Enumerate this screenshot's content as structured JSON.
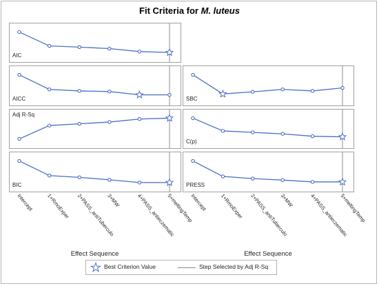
{
  "title": {
    "prefix": "Fit Criteria for ",
    "species": "M. luteus"
  },
  "colors": {
    "line": "#4a6fc4",
    "marker": "#4a6fc4",
    "frame": "#a0a0a0",
    "selected_line": "#8c8c8c"
  },
  "legend": {
    "best_label": "Best Criterion Value",
    "step_label": "Step Selected by Adj R-Sq"
  },
  "chart_data": [
    {
      "type": "line",
      "name": "AIC",
      "label": "AIC",
      "label_pos": "bottom-left",
      "x": [
        "Intercept",
        "1+RmoExper",
        "2+PASS_antiTuberculo",
        "3+MW",
        "4+PASS_antieczematic",
        "5+meltingTemp"
      ],
      "values": [
        0.85,
        0.38,
        0.34,
        0.29,
        0.19,
        0.16
      ],
      "best_index": 5,
      "selected_index": 5,
      "ylim": [
        0,
        1
      ]
    },
    {
      "type": "line",
      "name": "AICC",
      "label": "AICC",
      "label_pos": "bottom-left",
      "x": [
        "Intercept",
        "1+RmoExper",
        "2+PASS_antiTuberculo",
        "3+MW",
        "4+PASS_antieczematic",
        "5+meltingTemp"
      ],
      "values": [
        0.85,
        0.37,
        0.32,
        0.3,
        0.19,
        0.19
      ],
      "best_index": 4,
      "selected_index": 5,
      "ylim": [
        0,
        1
      ]
    },
    {
      "type": "line",
      "name": "SBC",
      "label": "SBC",
      "label_pos": "bottom-left",
      "x": [
        "Intercept",
        "1+RmoExper",
        "2+PASS_antiTuberculo",
        "3+MW",
        "4+PASS_antieczematic",
        "5+meltingTemp"
      ],
      "values": [
        0.85,
        0.22,
        0.29,
        0.37,
        0.32,
        0.42
      ],
      "best_index": 1,
      "selected_index": 5,
      "ylim": [
        0,
        1
      ]
    },
    {
      "type": "line",
      "name": "Adj R-Sq",
      "label": "Adj R-Sq",
      "label_pos": "top-left",
      "x": [
        "Intercept",
        "1+RmoExper",
        "2+PASS_antiTuberculo",
        "3+MW",
        "4+PASS_antieczematic",
        "5+meltingTemp"
      ],
      "values": [
        0.15,
        0.6,
        0.66,
        0.72,
        0.82,
        0.85
      ],
      "best_index": 5,
      "selected_index": 5,
      "ylim": [
        0,
        1
      ]
    },
    {
      "type": "line",
      "name": "C(p)",
      "label": "C(p)",
      "label_pos": "bottom-left",
      "x": [
        "Intercept",
        "1+RmoExper",
        "2+PASS_antiTuberculo",
        "3+MW",
        "4+PASS_antieczematic",
        "5+meltingTemp"
      ],
      "values": [
        0.85,
        0.42,
        0.37,
        0.32,
        0.24,
        0.22
      ],
      "best_index": 5,
      "selected_index": 5,
      "ylim": [
        0,
        1
      ]
    },
    {
      "type": "line",
      "name": "BIC",
      "label": "BIC",
      "label_pos": "bottom-left",
      "x": [
        "Intercept",
        "1+RmoExper",
        "2+PASS_antiTuberculo",
        "3+MW",
        "4+PASS_antieczematic",
        "5+meltingTemp"
      ],
      "values": [
        0.85,
        0.37,
        0.31,
        0.23,
        0.14,
        0.14
      ],
      "best_index": 5,
      "selected_index": 5,
      "ylim": [
        0,
        1
      ]
    },
    {
      "type": "line",
      "name": "PRESS",
      "label": "PRESS",
      "label_pos": "bottom-left",
      "x": [
        "Intercept",
        "1+RmoExper",
        "2+PASS_antiTuberculo",
        "3+MW",
        "4+PASS_antieczematic",
        "5+meltingTemp"
      ],
      "values": [
        0.85,
        0.34,
        0.27,
        0.22,
        0.16,
        0.16
      ],
      "best_index": 5,
      "selected_index": 5,
      "ylim": [
        0,
        1
      ]
    }
  ],
  "x_axis": {
    "title": "Effect Sequence",
    "ticks": [
      "Intercept",
      "1+RmoExper",
      "2+PASS_antiTuberculo",
      "3+MW",
      "4+PASS_antieczematic",
      "5+meltingTemp"
    ]
  }
}
